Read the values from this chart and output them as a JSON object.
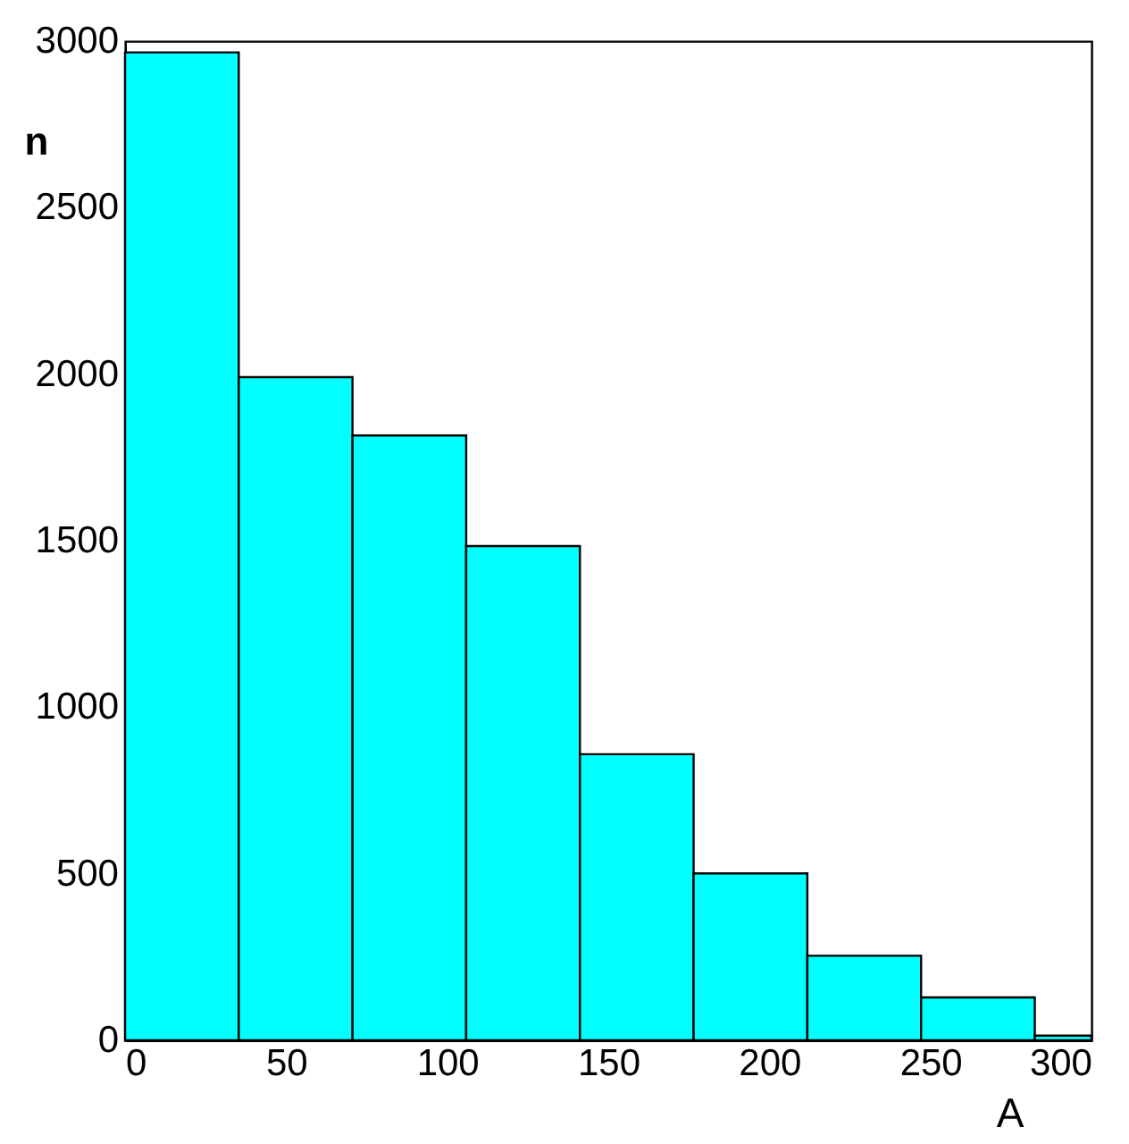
{
  "chart_data": {
    "type": "histogram",
    "xlabel": "A",
    "ylabel": "n",
    "bins": [
      0,
      35.3,
      70.6,
      105.9,
      141.2,
      176.5,
      211.8,
      247.1,
      282.4,
      300
    ],
    "values": [
      2966,
      1991,
      1816,
      1484,
      859,
      501,
      254,
      129,
      14
    ],
    "color": "#00ffff",
    "xlim": [
      0,
      300
    ],
    "xticks": [
      0,
      50,
      100,
      150,
      200,
      250,
      300
    ],
    "ylim": [
      0,
      3000
    ],
    "yticks": [
      0,
      500,
      1000,
      1500,
      2000,
      2500,
      3000
    ],
    "grid": false
  }
}
